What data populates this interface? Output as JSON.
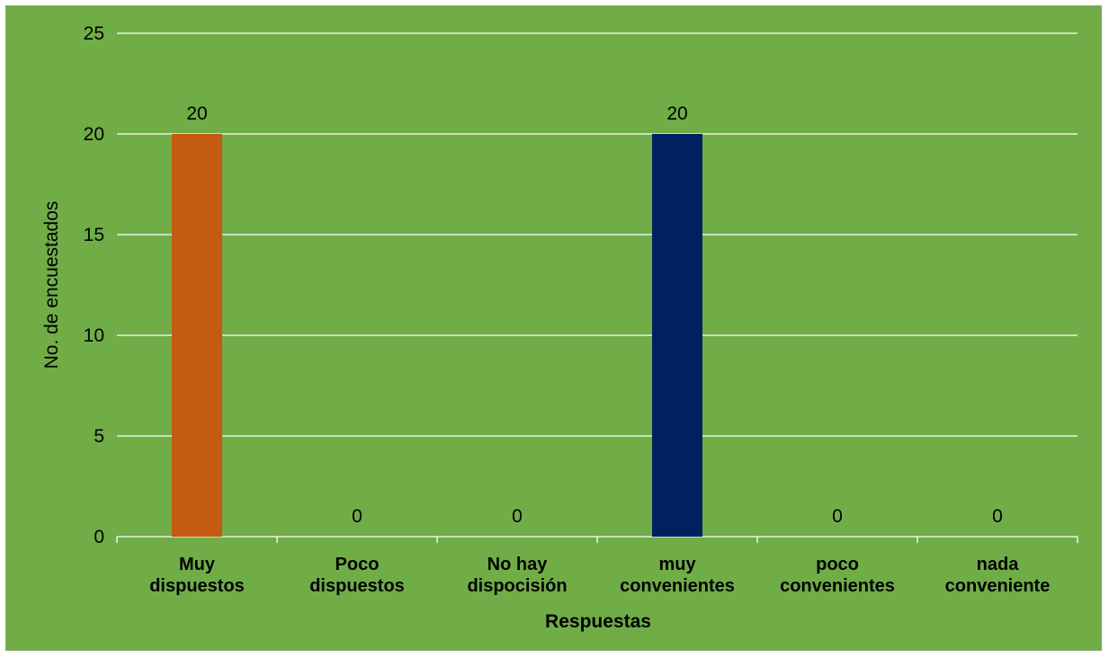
{
  "chart_data": {
    "type": "bar",
    "categories": [
      [
        "Muy",
        "dispuestos"
      ],
      [
        "Poco",
        "dispuestos"
      ],
      [
        "No hay",
        "dispocisión"
      ],
      [
        "muy",
        "convenientes"
      ],
      [
        "poco",
        "convenientes"
      ],
      [
        "nada",
        "conveniente"
      ]
    ],
    "values": [
      20,
      0,
      0,
      20,
      0,
      0
    ],
    "bar_colors": [
      "#c55a11",
      "#c55a11",
      "#c55a11",
      "#002060",
      "#002060",
      "#002060"
    ],
    "data_labels": [
      "20",
      "0",
      "0",
      "20",
      "0",
      "0"
    ],
    "ylim": [
      0,
      25
    ],
    "yticks": [
      0,
      5,
      10,
      15,
      20,
      25
    ],
    "xlabel": "Respuestas",
    "ylabel": "No. de encuestados",
    "grid": true,
    "legend": "none",
    "background_color": "#70ad47",
    "gridline_color": "#ffffff",
    "axis_color": "#ffffff"
  }
}
